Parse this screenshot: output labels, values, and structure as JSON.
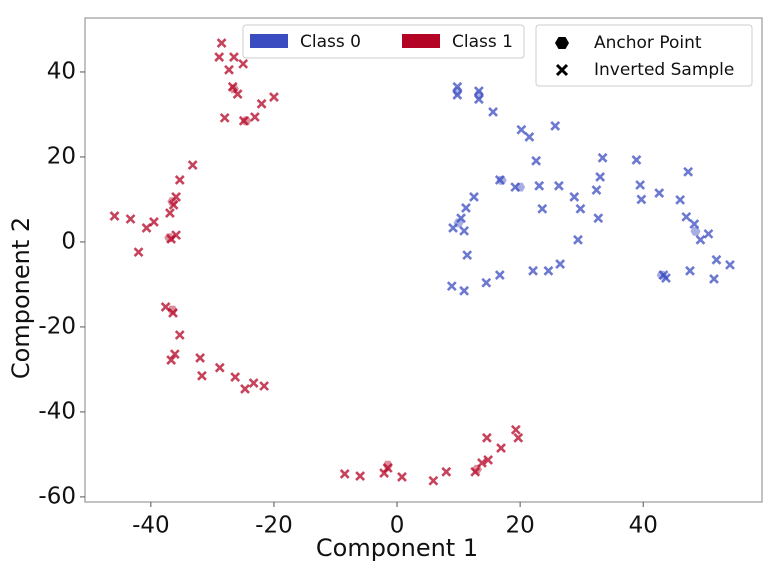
{
  "chart_data": {
    "type": "scatter",
    "xlabel": "Component 1",
    "ylabel": "Component 2",
    "xlim": [
      -50.7,
      59.3
    ],
    "ylim": [
      -61.2,
      52.7
    ],
    "xticks": [
      -40,
      -20,
      0,
      20,
      40
    ],
    "yticks": [
      -60,
      -40,
      -20,
      0,
      20,
      40
    ],
    "markers": {
      "anchor": "Anchor Point",
      "inverted": "Inverted Sample"
    },
    "classes": [
      {
        "name": "Class 0",
        "color": "#3b4cc0",
        "anchor": {
          "x": [
            9.8,
            13.3,
            17.0,
            10.0,
            48.5,
            43.0,
            20.0
          ],
          "y": [
            35.5,
            34.6,
            14.5,
            4.5,
            2.5,
            -7.8,
            12.9
          ]
        },
        "inverted": {
          "x": [
            9.8,
            9.8,
            13.3,
            13.3,
            15.6,
            20.2,
            21.5,
            25.7,
            22.6,
            16.7,
            19.2,
            23.1,
            26.3,
            28.8,
            32.4,
            33.0,
            33.4,
            23.6,
            29.8,
            32.7,
            12.5,
            11.2,
            10.4,
            9.1,
            10.9,
            29.4,
            11.4,
            8.9,
            10.9,
            14.5,
            16.7,
            22.1,
            24.6,
            26.5,
            38.9,
            39.5,
            39.7,
            42.6,
            46.0,
            47.3,
            47.6,
            47.0,
            48.3,
            49.3,
            50.6,
            51.9,
            51.5,
            43.3,
            43.7,
            54.1
          ],
          "y": [
            36.5,
            34.6,
            35.5,
            33.6,
            30.6,
            26.4,
            24.7,
            27.3,
            19.1,
            14.6,
            12.9,
            13.2,
            13.2,
            10.6,
            12.2,
            15.3,
            19.8,
            7.8,
            7.8,
            5.6,
            10.6,
            8.0,
            5.6,
            3.3,
            2.6,
            0.5,
            -3.1,
            -10.4,
            -11.5,
            -9.6,
            -7.8,
            -6.8,
            -6.8,
            -5.2,
            19.3,
            13.4,
            10.0,
            11.5,
            9.9,
            16.5,
            -6.8,
            5.9,
            4.2,
            0.5,
            1.9,
            -4.2,
            -8.7,
            -7.8,
            -8.5,
            -5.4
          ]
        }
      },
      {
        "name": "Class 1",
        "color": "#b40426",
        "anchor": {
          "x": [
            -26.5,
            -36.5,
            -37.0,
            -36.5,
            -1.5,
            13.0,
            -24.5
          ],
          "y": [
            36.0,
            9.5,
            1.0,
            -16.0,
            -52.5,
            -53.5,
            28.5
          ]
        },
        "inverted": {
          "x": [
            -28.5,
            -28.9,
            -26.5,
            -25.0,
            -27.3,
            -26.7,
            -25.9,
            -28.0,
            -24.9,
            -23.1,
            -22.0,
            -20.0,
            -33.2,
            -35.3,
            -35.9,
            -36.3,
            -36.9,
            -35.9,
            -36.7,
            -40.7,
            -39.5,
            -43.3,
            -45.9,
            -42.0,
            -37.6,
            -36.4,
            -35.3,
            -36.1,
            -36.7,
            -32.0,
            -31.7,
            -28.8,
            -26.3,
            -24.7,
            -23.3,
            -21.6,
            -8.5,
            -6.0,
            -1.5,
            -2.1,
            0.8,
            5.9,
            8.0,
            12.7,
            13.8,
            14.8,
            14.6,
            16.9,
            19.3,
            19.7
          ],
          "y": [
            46.8,
            43.5,
            43.5,
            41.9,
            40.5,
            36.5,
            34.8,
            29.2,
            28.5,
            29.4,
            32.5,
            34.1,
            18.1,
            14.6,
            10.6,
            8.7,
            6.8,
            1.6,
            0.7,
            3.3,
            4.7,
            5.4,
            6.1,
            -2.4,
            -15.3,
            -16.7,
            -21.9,
            -26.4,
            -27.8,
            -27.3,
            -31.5,
            -29.6,
            -31.8,
            -34.6,
            -33.2,
            -33.9,
            -54.6,
            -55.1,
            -53.2,
            -54.4,
            -55.3,
            -56.2,
            -54.1,
            -54.1,
            -52.0,
            -51.3,
            -46.1,
            -48.5,
            -44.2,
            -46.1
          ]
        }
      }
    ]
  }
}
